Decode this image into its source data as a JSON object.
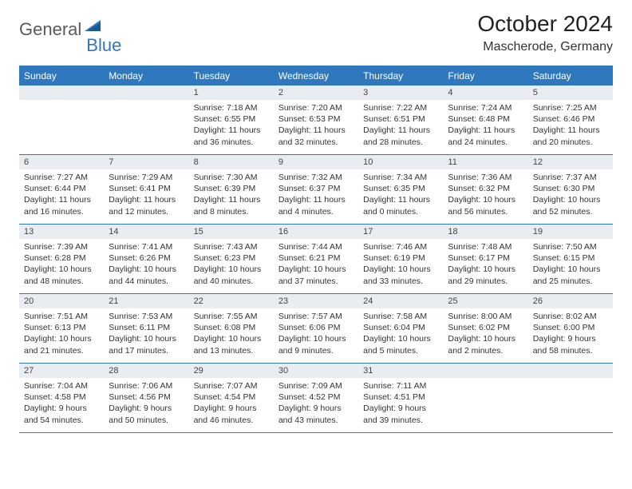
{
  "logo": {
    "text1": "General",
    "text2": "Blue"
  },
  "title": "October 2024",
  "location": "Mascherode, Germany",
  "colors": {
    "brand": "#2f78bd",
    "header_bg": "#2f78bd",
    "header_text": "#ffffff",
    "daynum_bg": "#e9edf1",
    "text": "#333333",
    "page_bg": "#ffffff"
  },
  "dayNames": [
    "Sunday",
    "Monday",
    "Tuesday",
    "Wednesday",
    "Thursday",
    "Friday",
    "Saturday"
  ],
  "weeks": [
    [
      {
        "n": "",
        "lines": []
      },
      {
        "n": "",
        "lines": []
      },
      {
        "n": "1",
        "lines": [
          "Sunrise: 7:18 AM",
          "Sunset: 6:55 PM",
          "Daylight: 11 hours",
          "and 36 minutes."
        ]
      },
      {
        "n": "2",
        "lines": [
          "Sunrise: 7:20 AM",
          "Sunset: 6:53 PM",
          "Daylight: 11 hours",
          "and 32 minutes."
        ]
      },
      {
        "n": "3",
        "lines": [
          "Sunrise: 7:22 AM",
          "Sunset: 6:51 PM",
          "Daylight: 11 hours",
          "and 28 minutes."
        ]
      },
      {
        "n": "4",
        "lines": [
          "Sunrise: 7:24 AM",
          "Sunset: 6:48 PM",
          "Daylight: 11 hours",
          "and 24 minutes."
        ]
      },
      {
        "n": "5",
        "lines": [
          "Sunrise: 7:25 AM",
          "Sunset: 6:46 PM",
          "Daylight: 11 hours",
          "and 20 minutes."
        ]
      }
    ],
    [
      {
        "n": "6",
        "lines": [
          "Sunrise: 7:27 AM",
          "Sunset: 6:44 PM",
          "Daylight: 11 hours",
          "and 16 minutes."
        ]
      },
      {
        "n": "7",
        "lines": [
          "Sunrise: 7:29 AM",
          "Sunset: 6:41 PM",
          "Daylight: 11 hours",
          "and 12 minutes."
        ]
      },
      {
        "n": "8",
        "lines": [
          "Sunrise: 7:30 AM",
          "Sunset: 6:39 PM",
          "Daylight: 11 hours",
          "and 8 minutes."
        ]
      },
      {
        "n": "9",
        "lines": [
          "Sunrise: 7:32 AM",
          "Sunset: 6:37 PM",
          "Daylight: 11 hours",
          "and 4 minutes."
        ]
      },
      {
        "n": "10",
        "lines": [
          "Sunrise: 7:34 AM",
          "Sunset: 6:35 PM",
          "Daylight: 11 hours",
          "and 0 minutes."
        ]
      },
      {
        "n": "11",
        "lines": [
          "Sunrise: 7:36 AM",
          "Sunset: 6:32 PM",
          "Daylight: 10 hours",
          "and 56 minutes."
        ]
      },
      {
        "n": "12",
        "lines": [
          "Sunrise: 7:37 AM",
          "Sunset: 6:30 PM",
          "Daylight: 10 hours",
          "and 52 minutes."
        ]
      }
    ],
    [
      {
        "n": "13",
        "lines": [
          "Sunrise: 7:39 AM",
          "Sunset: 6:28 PM",
          "Daylight: 10 hours",
          "and 48 minutes."
        ]
      },
      {
        "n": "14",
        "lines": [
          "Sunrise: 7:41 AM",
          "Sunset: 6:26 PM",
          "Daylight: 10 hours",
          "and 44 minutes."
        ]
      },
      {
        "n": "15",
        "lines": [
          "Sunrise: 7:43 AM",
          "Sunset: 6:23 PM",
          "Daylight: 10 hours",
          "and 40 minutes."
        ]
      },
      {
        "n": "16",
        "lines": [
          "Sunrise: 7:44 AM",
          "Sunset: 6:21 PM",
          "Daylight: 10 hours",
          "and 37 minutes."
        ]
      },
      {
        "n": "17",
        "lines": [
          "Sunrise: 7:46 AM",
          "Sunset: 6:19 PM",
          "Daylight: 10 hours",
          "and 33 minutes."
        ]
      },
      {
        "n": "18",
        "lines": [
          "Sunrise: 7:48 AM",
          "Sunset: 6:17 PM",
          "Daylight: 10 hours",
          "and 29 minutes."
        ]
      },
      {
        "n": "19",
        "lines": [
          "Sunrise: 7:50 AM",
          "Sunset: 6:15 PM",
          "Daylight: 10 hours",
          "and 25 minutes."
        ]
      }
    ],
    [
      {
        "n": "20",
        "lines": [
          "Sunrise: 7:51 AM",
          "Sunset: 6:13 PM",
          "Daylight: 10 hours",
          "and 21 minutes."
        ]
      },
      {
        "n": "21",
        "lines": [
          "Sunrise: 7:53 AM",
          "Sunset: 6:11 PM",
          "Daylight: 10 hours",
          "and 17 minutes."
        ]
      },
      {
        "n": "22",
        "lines": [
          "Sunrise: 7:55 AM",
          "Sunset: 6:08 PM",
          "Daylight: 10 hours",
          "and 13 minutes."
        ]
      },
      {
        "n": "23",
        "lines": [
          "Sunrise: 7:57 AM",
          "Sunset: 6:06 PM",
          "Daylight: 10 hours",
          "and 9 minutes."
        ]
      },
      {
        "n": "24",
        "lines": [
          "Sunrise: 7:58 AM",
          "Sunset: 6:04 PM",
          "Daylight: 10 hours",
          "and 5 minutes."
        ]
      },
      {
        "n": "25",
        "lines": [
          "Sunrise: 8:00 AM",
          "Sunset: 6:02 PM",
          "Daylight: 10 hours",
          "and 2 minutes."
        ]
      },
      {
        "n": "26",
        "lines": [
          "Sunrise: 8:02 AM",
          "Sunset: 6:00 PM",
          "Daylight: 9 hours",
          "and 58 minutes."
        ]
      }
    ],
    [
      {
        "n": "27",
        "lines": [
          "Sunrise: 7:04 AM",
          "Sunset: 4:58 PM",
          "Daylight: 9 hours",
          "and 54 minutes."
        ]
      },
      {
        "n": "28",
        "lines": [
          "Sunrise: 7:06 AM",
          "Sunset: 4:56 PM",
          "Daylight: 9 hours",
          "and 50 minutes."
        ]
      },
      {
        "n": "29",
        "lines": [
          "Sunrise: 7:07 AM",
          "Sunset: 4:54 PM",
          "Daylight: 9 hours",
          "and 46 minutes."
        ]
      },
      {
        "n": "30",
        "lines": [
          "Sunrise: 7:09 AM",
          "Sunset: 4:52 PM",
          "Daylight: 9 hours",
          "and 43 minutes."
        ]
      },
      {
        "n": "31",
        "lines": [
          "Sunrise: 7:11 AM",
          "Sunset: 4:51 PM",
          "Daylight: 9 hours",
          "and 39 minutes."
        ]
      },
      {
        "n": "",
        "lines": []
      },
      {
        "n": "",
        "lines": []
      }
    ]
  ]
}
